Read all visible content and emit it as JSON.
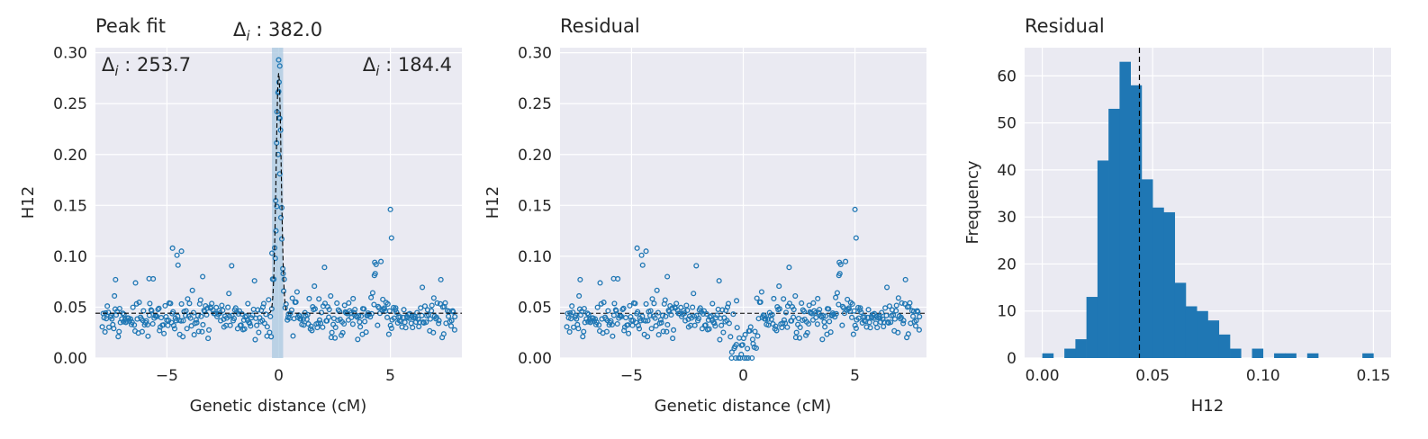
{
  "chart_data": [
    {
      "type": "scatter",
      "title": "Peak fit",
      "xlabel": "Genetic distance (cM)",
      "ylabel": "H12",
      "xlim": [
        -8.2,
        8.2
      ],
      "ylim": [
        0.0,
        0.305
      ],
      "xticks": [
        "−5",
        "0",
        "5"
      ],
      "yticks": [
        "0.00",
        "0.05",
        "0.10",
        "0.15",
        "0.20",
        "0.25",
        "0.30"
      ],
      "annotations": [
        "Δ_i : 382.0",
        "Δ_i : 253.7",
        "Δ_i : 184.4"
      ],
      "highlight_band_cM": [
        -0.3,
        0.2
      ],
      "baseline": 0.044,
      "peak": {
        "center": 0.0,
        "amplitude": 0.236,
        "width": 0.16
      },
      "point_style": "open circles",
      "grid": true,
      "colors": {
        "points": "#1f77b4",
        "fit": "#000000",
        "band": "#a9c8e0",
        "background": "#eaeaf2"
      }
    },
    {
      "type": "scatter",
      "title": "Residual",
      "xlabel": "Genetic distance (cM)",
      "ylabel": "H12",
      "xlim": [
        -8.2,
        8.2
      ],
      "ylim": [
        0.0,
        0.305
      ],
      "xticks": [
        "−5",
        "0",
        "5"
      ],
      "yticks": [
        "0.00",
        "0.05",
        "0.10",
        "0.15",
        "0.20",
        "0.25",
        "0.30"
      ],
      "baseline": 0.044,
      "point_style": "open circles",
      "grid": true,
      "colors": {
        "points": "#1f77b4",
        "baseline": "#000000",
        "background": "#eaeaf2"
      }
    },
    {
      "type": "bar",
      "title": "Residual",
      "xlabel": "H12",
      "ylabel": "Frequency",
      "xlim": [
        -0.008,
        0.158
      ],
      "ylim": [
        0,
        66
      ],
      "xticks": [
        "0.00",
        "0.05",
        "0.10",
        "0.15"
      ],
      "yticks": [
        "0",
        "10",
        "20",
        "30",
        "40",
        "50",
        "60"
      ],
      "bin_width": 0.005,
      "bin_start": 0.0,
      "counts": [
        1,
        0,
        2,
        4,
        13,
        42,
        53,
        63,
        58,
        38,
        32,
        31,
        16,
        11,
        10,
        8,
        5,
        2,
        0,
        2,
        0,
        1,
        1,
        0,
        1,
        0,
        0,
        0,
        0,
        1
      ],
      "mean_line": 0.044,
      "grid": true,
      "colors": {
        "bars": "#1f77b4",
        "mean_line": "#000000",
        "background": "#eaeaf2"
      }
    }
  ]
}
